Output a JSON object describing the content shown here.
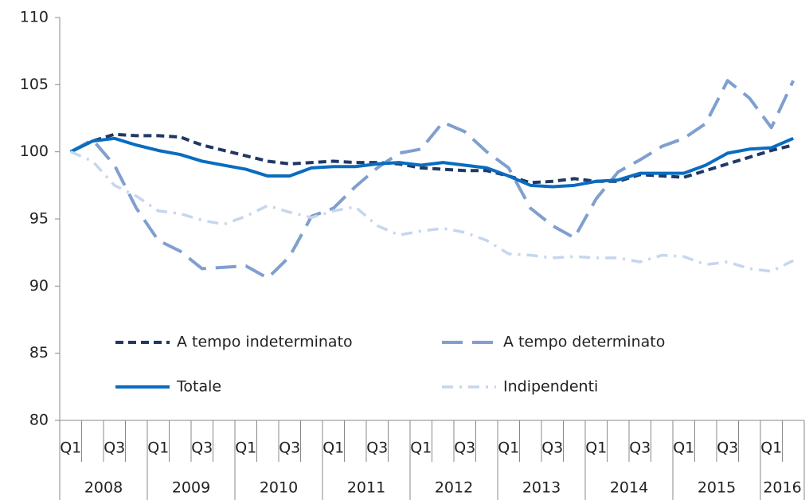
{
  "chart_data": {
    "type": "line",
    "categories": [
      "Q1",
      null,
      "Q3",
      null,
      "Q1",
      null,
      "Q3",
      null,
      "Q1",
      null,
      "Q3",
      null,
      "Q1",
      null,
      "Q3",
      null,
      "Q1",
      null,
      "Q3",
      null,
      "Q1",
      null,
      "Q3",
      null,
      "Q1",
      null,
      "Q3",
      null,
      "Q1",
      null,
      "Q3",
      null,
      "Q1",
      null
    ],
    "years": [
      "2008",
      "2009",
      "2010",
      "2011",
      "2012",
      "2013",
      "2014",
      "2015",
      "2016"
    ],
    "ylim": [
      80,
      110
    ],
    "yticks": [
      80,
      85,
      90,
      95,
      100,
      105,
      110
    ],
    "series": [
      {
        "name": "A tempo indeterminato",
        "color": "#203864",
        "line_style": "dashed",
        "values": [
          100,
          100.8,
          101.3,
          101.2,
          101.2,
          101.1,
          100.5,
          100.1,
          99.7,
          99.3,
          99.1,
          99.2,
          99.3,
          99.2,
          99.2,
          99.1,
          98.8,
          98.7,
          98.6,
          98.6,
          98.2,
          97.7,
          97.8,
          98.0,
          97.8,
          97.8,
          98.3,
          98.2,
          98.1,
          98.6,
          99.1,
          99.6,
          100.1,
          100.5
        ]
      },
      {
        "name": "A tempo determinato",
        "color": "#7f9fcf",
        "line_style": "long-dash",
        "values": [
          100,
          100.9,
          99.0,
          95.8,
          93.4,
          92.6,
          91.3,
          91.4,
          91.5,
          90.6,
          92.2,
          95.2,
          95.8,
          97.4,
          98.8,
          99.9,
          100.2,
          102.2,
          101.5,
          100.0,
          98.8,
          95.8,
          94.5,
          93.6,
          96.5,
          98.5,
          99.4,
          100.4,
          101.0,
          102.1,
          105.3,
          104.0,
          101.8,
          105.3
        ]
      },
      {
        "name": "Totale",
        "color": "#0a6cc0",
        "line_style": "solid",
        "values": [
          100,
          100.8,
          101.0,
          100.5,
          100.1,
          99.8,
          99.3,
          99.0,
          98.7,
          98.2,
          98.2,
          98.8,
          98.9,
          98.9,
          99.1,
          99.2,
          99.0,
          99.2,
          99.0,
          98.8,
          98.2,
          97.5,
          97.4,
          97.5,
          97.8,
          97.9,
          98.4,
          98.4,
          98.4,
          99.0,
          99.9,
          100.2,
          100.3,
          101.0
        ]
      },
      {
        "name": "Indipendenti",
        "color": "#c5d6ee",
        "line_style": "dash-dot",
        "values": [
          100,
          99.3,
          97.5,
          96.7,
          95.6,
          95.4,
          94.9,
          94.6,
          95.2,
          96.0,
          95.5,
          95.1,
          95.6,
          95.9,
          94.5,
          93.8,
          94.1,
          94.3,
          94.0,
          93.4,
          92.4,
          92.3,
          92.1,
          92.2,
          92.1,
          92.1,
          91.8,
          92.3,
          92.2,
          91.6,
          91.8,
          91.3,
          91.1,
          91.9
        ]
      }
    ]
  }
}
